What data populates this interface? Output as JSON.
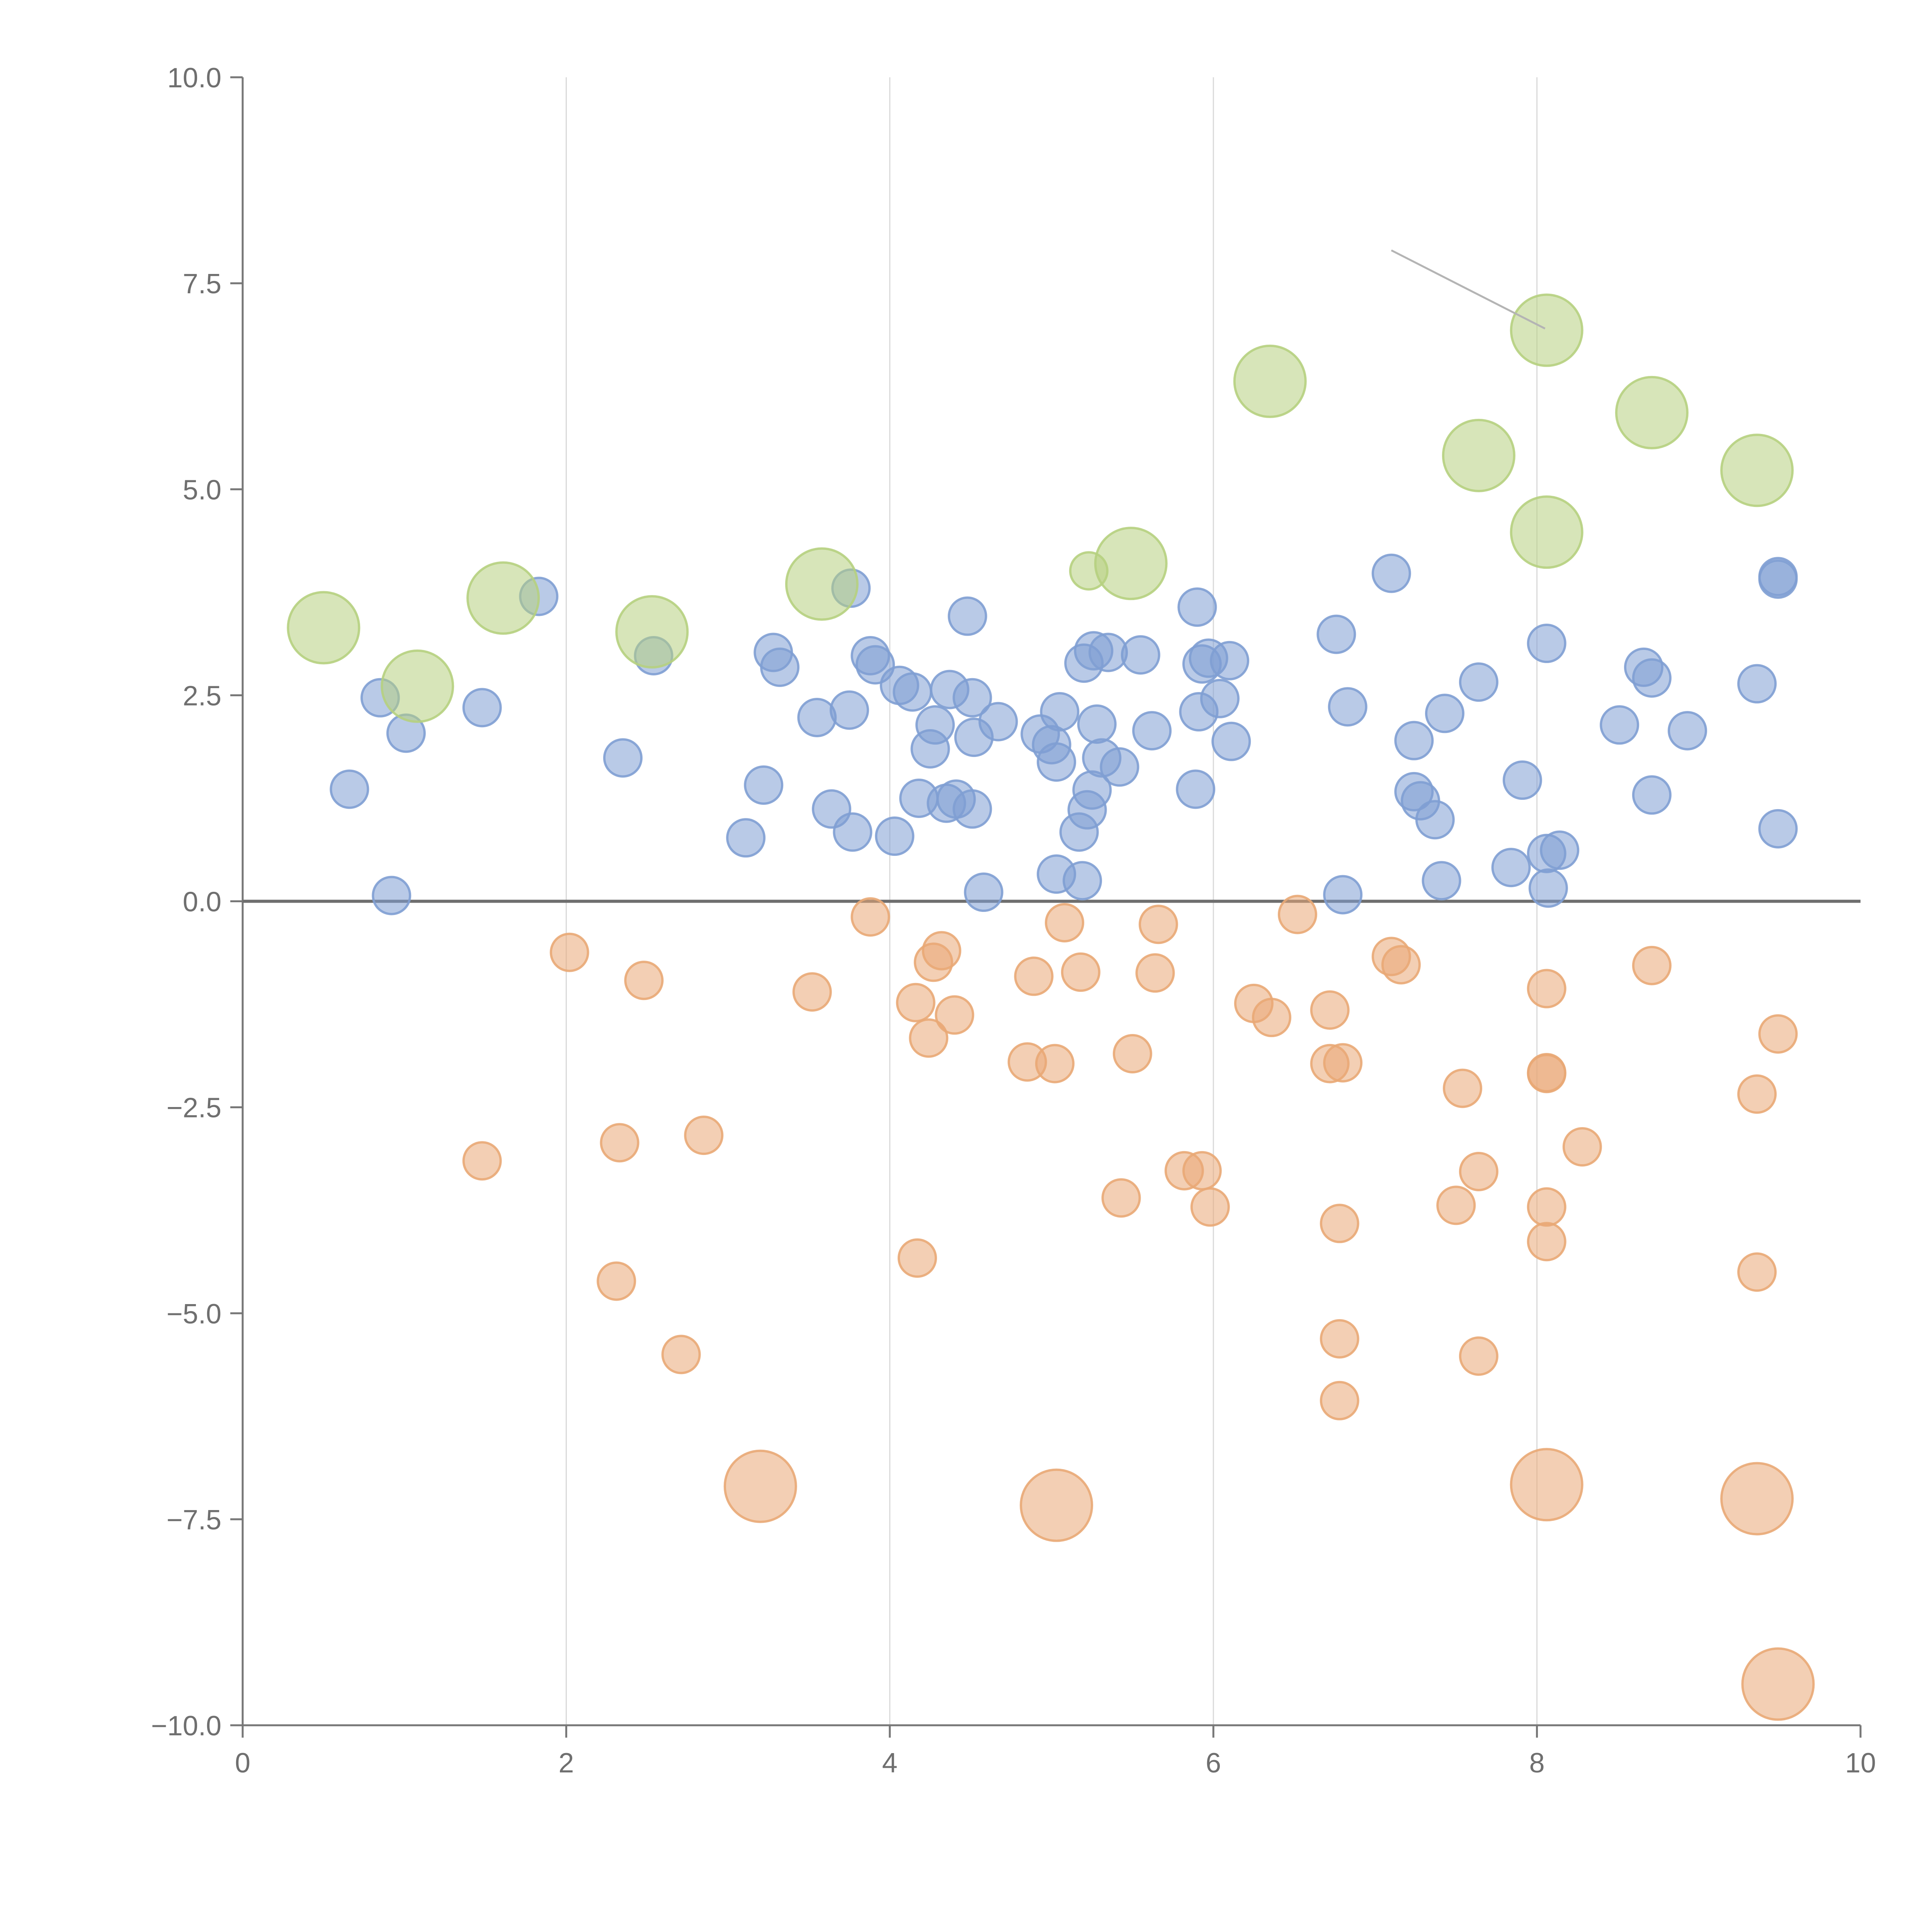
{
  "chart_data": {
    "type": "scatter",
    "title": "",
    "xlabel": "",
    "ylabel": "",
    "xlim": [
      0,
      10
    ],
    "ylim": [
      -10,
      10
    ],
    "grid": "vertical-only",
    "x_ticks": [
      0,
      2,
      4,
      6,
      8,
      10
    ],
    "y_ticks": [
      -10,
      -7.5,
      -5,
      -2.5,
      0,
      2.5,
      5,
      7.5,
      10
    ],
    "x_tick_labels": [
      "0",
      "2",
      "4",
      "6",
      "8",
      "10"
    ],
    "y_tick_labels": [
      "−10.0",
      "−7.5",
      "−5.0",
      "−2.5",
      "0.0",
      "2.5",
      "5.0",
      "7.5",
      "10.0"
    ],
    "reference_line_y": 0,
    "callout_line": [
      [
        7.1,
        7.9
      ],
      [
        8.05,
        6.95
      ]
    ],
    "series": [
      {
        "name": "blue",
        "color": "#7f9fd3",
        "size": "small",
        "points": [
          [
            0.66,
            1.36
          ],
          [
            0.85,
            2.47
          ],
          [
            0.92,
            0.07
          ],
          [
            1.01,
            2.04
          ],
          [
            1.48,
            2.35
          ],
          [
            1.83,
            3.7
          ],
          [
            2.35,
            1.74
          ],
          [
            2.54,
            2.98
          ],
          [
            3.11,
            0.77
          ],
          [
            3.22,
            1.41
          ],
          [
            3.28,
            3.02
          ],
          [
            3.32,
            2.84
          ],
          [
            3.55,
            2.23
          ],
          [
            3.64,
            1.12
          ],
          [
            3.75,
            2.32
          ],
          [
            3.76,
            3.8
          ],
          [
            3.77,
            0.84
          ],
          [
            3.88,
            2.98
          ],
          [
            3.91,
            2.87
          ],
          [
            4.03,
            0.79
          ],
          [
            4.06,
            2.62
          ],
          [
            4.14,
            2.54
          ],
          [
            4.18,
            1.25
          ],
          [
            4.25,
            1.85
          ],
          [
            4.28,
            2.14
          ],
          [
            4.35,
            1.19
          ],
          [
            4.37,
            2.57
          ],
          [
            4.41,
            1.24
          ],
          [
            4.48,
            3.46
          ],
          [
            4.51,
            2.47
          ],
          [
            4.51,
            1.12
          ],
          [
            4.52,
            1.99
          ],
          [
            4.58,
            0.11
          ],
          [
            4.67,
            2.18
          ],
          [
            4.93,
            2.03
          ],
          [
            5.0,
            1.9
          ],
          [
            5.03,
            1.69
          ],
          [
            5.03,
            0.33
          ],
          [
            5.05,
            2.3
          ],
          [
            5.17,
            0.84
          ],
          [
            5.19,
            0.25
          ],
          [
            5.2,
            2.89
          ],
          [
            5.22,
            1.11
          ],
          [
            5.25,
            1.35
          ],
          [
            5.26,
            3.04
          ],
          [
            5.28,
            2.15
          ],
          [
            5.31,
            1.74
          ],
          [
            5.35,
            3.02
          ],
          [
            5.42,
            1.63
          ],
          [
            5.55,
            2.99
          ],
          [
            5.62,
            2.07
          ],
          [
            5.89,
            1.36
          ],
          [
            5.9,
            3.57
          ],
          [
            5.91,
            2.3
          ],
          [
            5.93,
            2.88
          ],
          [
            5.97,
            2.95
          ],
          [
            6.04,
            2.46
          ],
          [
            6.1,
            2.92
          ],
          [
            6.11,
            1.94
          ],
          [
            6.76,
            3.24
          ],
          [
            6.8,
            0.08
          ],
          [
            6.83,
            2.36
          ],
          [
            7.1,
            3.98
          ],
          [
            7.24,
            1.95
          ],
          [
            7.24,
            1.33
          ],
          [
            7.28,
            1.22
          ],
          [
            7.37,
            0.99
          ],
          [
            7.41,
            0.25
          ],
          [
            7.43,
            2.28
          ],
          [
            7.64,
            2.66
          ],
          [
            7.84,
            0.41
          ],
          [
            7.91,
            1.47
          ],
          [
            8.06,
            3.13
          ],
          [
            8.06,
            0.58
          ],
          [
            8.07,
            0.16
          ],
          [
            8.14,
            0.62
          ],
          [
            8.51,
            2.14
          ],
          [
            8.66,
            2.84
          ],
          [
            8.71,
            2.71
          ],
          [
            8.71,
            1.29
          ],
          [
            8.93,
            2.07
          ],
          [
            9.36,
            2.64
          ],
          [
            9.49,
            3.94
          ],
          [
            9.49,
            3.91
          ],
          [
            9.49,
            0.88
          ]
        ]
      },
      {
        "name": "orange",
        "color": "#e9a876",
        "size": "small",
        "points": [
          [
            1.48,
            -3.15
          ],
          [
            2.02,
            -0.62
          ],
          [
            2.31,
            -4.61
          ],
          [
            2.33,
            -2.93
          ],
          [
            2.48,
            -0.96
          ],
          [
            2.71,
            -5.5
          ],
          [
            2.85,
            -2.84
          ],
          [
            3.52,
            -1.1
          ],
          [
            3.88,
            -0.19
          ],
          [
            4.16,
            -1.23
          ],
          [
            4.17,
            -4.33
          ],
          [
            4.24,
            -1.66
          ],
          [
            4.27,
            -0.74
          ],
          [
            4.32,
            -0.6
          ],
          [
            4.4,
            -1.38
          ],
          [
            4.85,
            -1.95
          ],
          [
            4.89,
            -0.91
          ],
          [
            5.02,
            -1.97
          ],
          [
            5.08,
            -0.26
          ],
          [
            5.18,
            -0.86
          ],
          [
            5.43,
            -3.6
          ],
          [
            5.5,
            -1.85
          ],
          [
            5.64,
            -0.87
          ],
          [
            5.66,
            -0.28
          ],
          [
            5.82,
            -3.27
          ],
          [
            5.93,
            -3.27
          ],
          [
            5.98,
            -3.71
          ],
          [
            6.25,
            -1.24
          ],
          [
            6.36,
            -1.41
          ],
          [
            6.52,
            -0.16
          ],
          [
            6.72,
            -1.97
          ],
          [
            6.72,
            -1.32
          ],
          [
            6.78,
            -3.91
          ],
          [
            6.78,
            -5.31
          ],
          [
            6.78,
            -6.06
          ],
          [
            6.8,
            -1.96
          ],
          [
            7.1,
            -0.67
          ],
          [
            7.16,
            -0.77
          ],
          [
            7.5,
            -3.69
          ],
          [
            7.54,
            -2.27
          ],
          [
            7.64,
            -3.28
          ],
          [
            7.64,
            -5.52
          ],
          [
            8.06,
            -1.06
          ],
          [
            8.06,
            -2.08
          ],
          [
            8.06,
            -2.09
          ],
          [
            8.06,
            -3.71
          ],
          [
            8.06,
            -4.13
          ],
          [
            8.28,
            -2.98
          ],
          [
            8.71,
            -0.78
          ],
          [
            9.36,
            -2.34
          ],
          [
            9.36,
            -4.5
          ],
          [
            9.49,
            -1.61
          ]
        ]
      },
      {
        "name": "orange-large",
        "color": "#e9a876",
        "size": "large",
        "points": [
          [
            3.2,
            -7.1
          ],
          [
            5.03,
            -7.33
          ],
          [
            8.06,
            -7.08
          ],
          [
            9.36,
            -7.25
          ],
          [
            9.49,
            -9.5
          ]
        ]
      },
      {
        "name": "green",
        "color": "#b6d07f",
        "size": "large",
        "points": [
          [
            0.5,
            3.32
          ],
          [
            1.08,
            2.61
          ],
          [
            1.61,
            3.68
          ],
          [
            2.53,
            3.27
          ],
          [
            3.58,
            3.85
          ],
          [
            5.49,
            4.1
          ],
          [
            6.35,
            6.31
          ],
          [
            7.64,
            5.41
          ],
          [
            8.06,
            6.93
          ],
          [
            8.06,
            4.48
          ],
          [
            8.71,
            5.93
          ],
          [
            9.36,
            5.23
          ]
        ]
      },
      {
        "name": "green-small",
        "color": "#b6d07f",
        "size": "small",
        "points": [
          [
            5.23,
            4.01
          ]
        ]
      }
    ]
  }
}
